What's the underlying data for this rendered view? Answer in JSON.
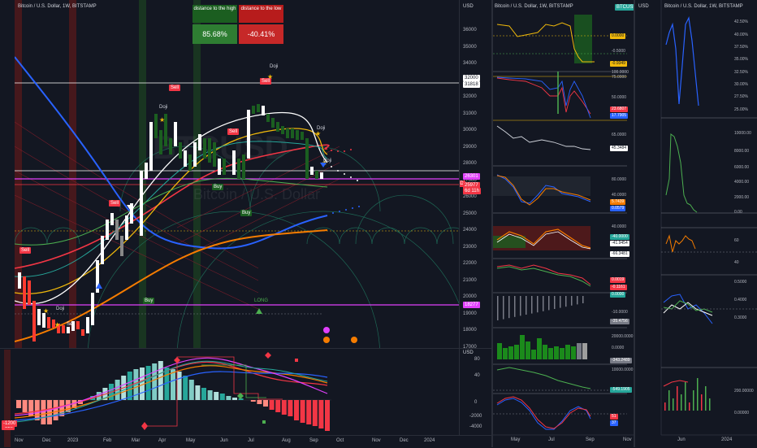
{
  "symbol_title": "Bitcoin / U.S. Dollar, 1W, BITSTAMP",
  "mini_title_1": "Bitcoin / U.S. Dollar, 1W, BITSTAMP",
  "mini_title_2": "Bitcoin / U.S. Dollar, 1W, BITSTAMP",
  "currency": "USD",
  "watermark": "BTCUSD",
  "watermark_sub": "Bitcoin / U.S. Dollar",
  "distance_high": {
    "label": "distance to the high",
    "value": "85.68%"
  },
  "distance_low": {
    "label": "distance to the low",
    "value": "-40.41%"
  },
  "price_axis": [
    "36000",
    "35000",
    "34000",
    "33000",
    "32000",
    "31000",
    "30000",
    "29000",
    "28000",
    "27000",
    "26000",
    "25000",
    "24000",
    "23000",
    "22000",
    "21000",
    "20000",
    "19000",
    "18000",
    "17000"
  ],
  "price_tags": [
    {
      "text": "32000",
      "bg": "#ffffff",
      "fg": "#131722"
    },
    {
      "text": "31818",
      "bg": "#ffffff",
      "fg": "#131722"
    },
    {
      "text": "High",
      "bg": "transparent",
      "fg": "#d1d4dc"
    },
    {
      "text": "P (2h)",
      "bg": "transparent",
      "fg": "#d1d4dc"
    },
    {
      "text": "26301",
      "bg": "#e040fb",
      "fg": "#ffffff"
    },
    {
      "text": "BTCUSD",
      "bg": "#f23645",
      "fg": "#ffffff"
    },
    {
      "text": "25977",
      "bg": "#f23645",
      "fg": "#ffffff"
    },
    {
      "text": "6d 11h",
      "bg": "#f23645",
      "fg": "#ffffff"
    },
    {
      "text": "18277",
      "bg": "#e040fb",
      "fg": "#ffffff"
    }
  ],
  "signals": {
    "sell": "Sell",
    "buy": "Buy",
    "doji": "Doji",
    "long": "LONG"
  },
  "lower_axis": [
    "1200",
    "800",
    "400",
    "0",
    "-400",
    "-800"
  ],
  "lower_tags": [
    {
      "text": "1208",
      "bg": "#e040fb"
    },
    {
      "text": "518",
      "bg": "#26a69a"
    },
    {
      "text": "476",
      "bg": "#2962ff"
    },
    {
      "text": "-563",
      "bg": "#e040fb"
    }
  ],
  "lower_left_tags": [
    {
      "text": "-920",
      "bg": "#f23645"
    },
    {
      "text": "-1200",
      "bg": "#f23645"
    }
  ],
  "osc_axis": [
    "80",
    "40",
    "0",
    "-2000",
    "-4000"
  ],
  "time_axis": [
    "Nov",
    "Dec",
    "2023",
    "Feb",
    "Mar",
    "Apr",
    "May",
    "Jun",
    "Jul",
    "Aug",
    "Sep",
    "Oct",
    "Nov",
    "Dec",
    "2024"
  ],
  "col2": {
    "tags": [
      {
        "text": "0.0000",
        "bg": "#f0b90b"
      },
      {
        "text": "-0.5000",
        "bg": "transparent"
      },
      {
        "text": "-0.9349",
        "bg": "#f0b90b"
      },
      {
        "text": "100.0000",
        "bg": "transparent"
      },
      {
        "text": "75.0000",
        "bg": "transparent"
      },
      {
        "text": "50.0000",
        "bg": "transparent"
      },
      {
        "text": "23.6807",
        "bg": "#f23645"
      },
      {
        "text": "17.7905",
        "bg": "#2962ff"
      },
      {
        "text": "65.0000",
        "bg": "transparent"
      },
      {
        "text": "45.3484",
        "bg": "#ffffff"
      },
      {
        "text": "80.0000",
        "bg": "transparent"
      },
      {
        "text": "40.0000",
        "bg": "transparent"
      },
      {
        "text": "5.7439",
        "bg": "#f57c00"
      },
      {
        "text": "0.0579",
        "bg": "#2962ff"
      },
      {
        "text": "40.0000",
        "bg": "transparent"
      },
      {
        "text": "-40.0000",
        "bg": "#26a69a"
      },
      {
        "text": "-41.9454",
        "bg": "#ffffff"
      },
      {
        "text": "-66.3481",
        "bg": "#ffffff"
      },
      {
        "text": "0.0019",
        "bg": "#f23645"
      },
      {
        "text": "-0.1161",
        "bg": "#f23645"
      },
      {
        "text": "0.0000",
        "bg": "#26a69a"
      },
      {
        "text": "-10.0000",
        "bg": "transparent"
      },
      {
        "text": "-35.4756",
        "bg": "#787b86"
      },
      {
        "text": "20000.0000",
        "bg": "transparent"
      },
      {
        "text": "0.0000",
        "bg": "transparent"
      },
      {
        "text": "-343.2489",
        "bg": "#787b86"
      },
      {
        "text": "10000.0000",
        "bg": "transparent"
      },
      {
        "text": "-549.1905",
        "bg": "#26a69a"
      },
      {
        "text": "51",
        "bg": "#f23645"
      },
      {
        "text": "37",
        "bg": "#2962ff"
      }
    ],
    "title_tag": "BTCUSD",
    "time_axis": [
      "May",
      "Jul",
      "Sep",
      "Nov"
    ]
  },
  "col3": {
    "axis": [
      "42.50%",
      "40.00%",
      "37.50%",
      "35.00%",
      "32.50%",
      "30.00%",
      "27.50%",
      "25.00%",
      "10000.00",
      "8000.00",
      "6000.00",
      "4000.00",
      "2000.00",
      "0.00",
      "60",
      "40",
      "0.5000",
      "0.4000",
      "0.3000",
      "200.00000",
      "0.00000"
    ],
    "time_axis": [
      "Jun",
      "2024"
    ]
  }
}
